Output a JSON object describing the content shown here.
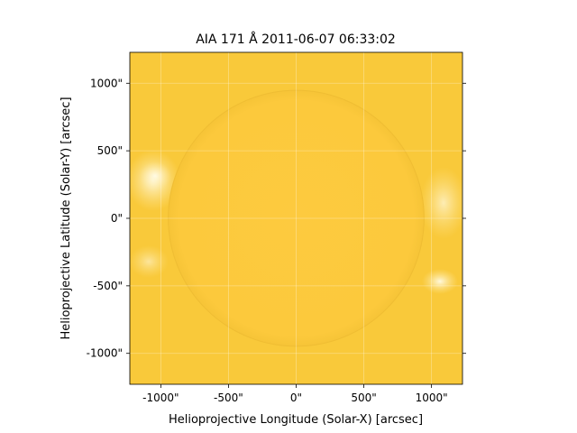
{
  "chart_data": {
    "type": "heatmap",
    "title": "AIA 171 Å 2011-06-07 06:33:02",
    "xlabel": "Helioprojective Longitude (Solar-X) [arcsec]",
    "ylabel": "Helioprojective Latitude (Solar-Y) [arcsec]",
    "xlim": [
      -1229,
      1229
    ],
    "ylim": [
      -1229,
      1229
    ],
    "x_ticks": [
      {
        "value": -1000,
        "label": "-1000\""
      },
      {
        "value": -500,
        "label": "-500\""
      },
      {
        "value": 0,
        "label": "0\""
      },
      {
        "value": 500,
        "label": "500\""
      },
      {
        "value": 1000,
        "label": "1000\""
      }
    ],
    "y_ticks": [
      {
        "value": -1000,
        "label": "-1000\""
      },
      {
        "value": -500,
        "label": "-500\""
      },
      {
        "value": 0,
        "label": "0\""
      },
      {
        "value": 500,
        "label": "500\""
      },
      {
        "value": 1000,
        "label": "1000\""
      }
    ],
    "grid": true,
    "solar_disk": {
      "center": [
        0,
        0
      ],
      "radius_arcsec": 945
    },
    "colors": {
      "background_field": "#f9c93a",
      "disk": "#fdca3e",
      "limb_bright": "#fff6cf",
      "grid": "#ffffff"
    }
  }
}
